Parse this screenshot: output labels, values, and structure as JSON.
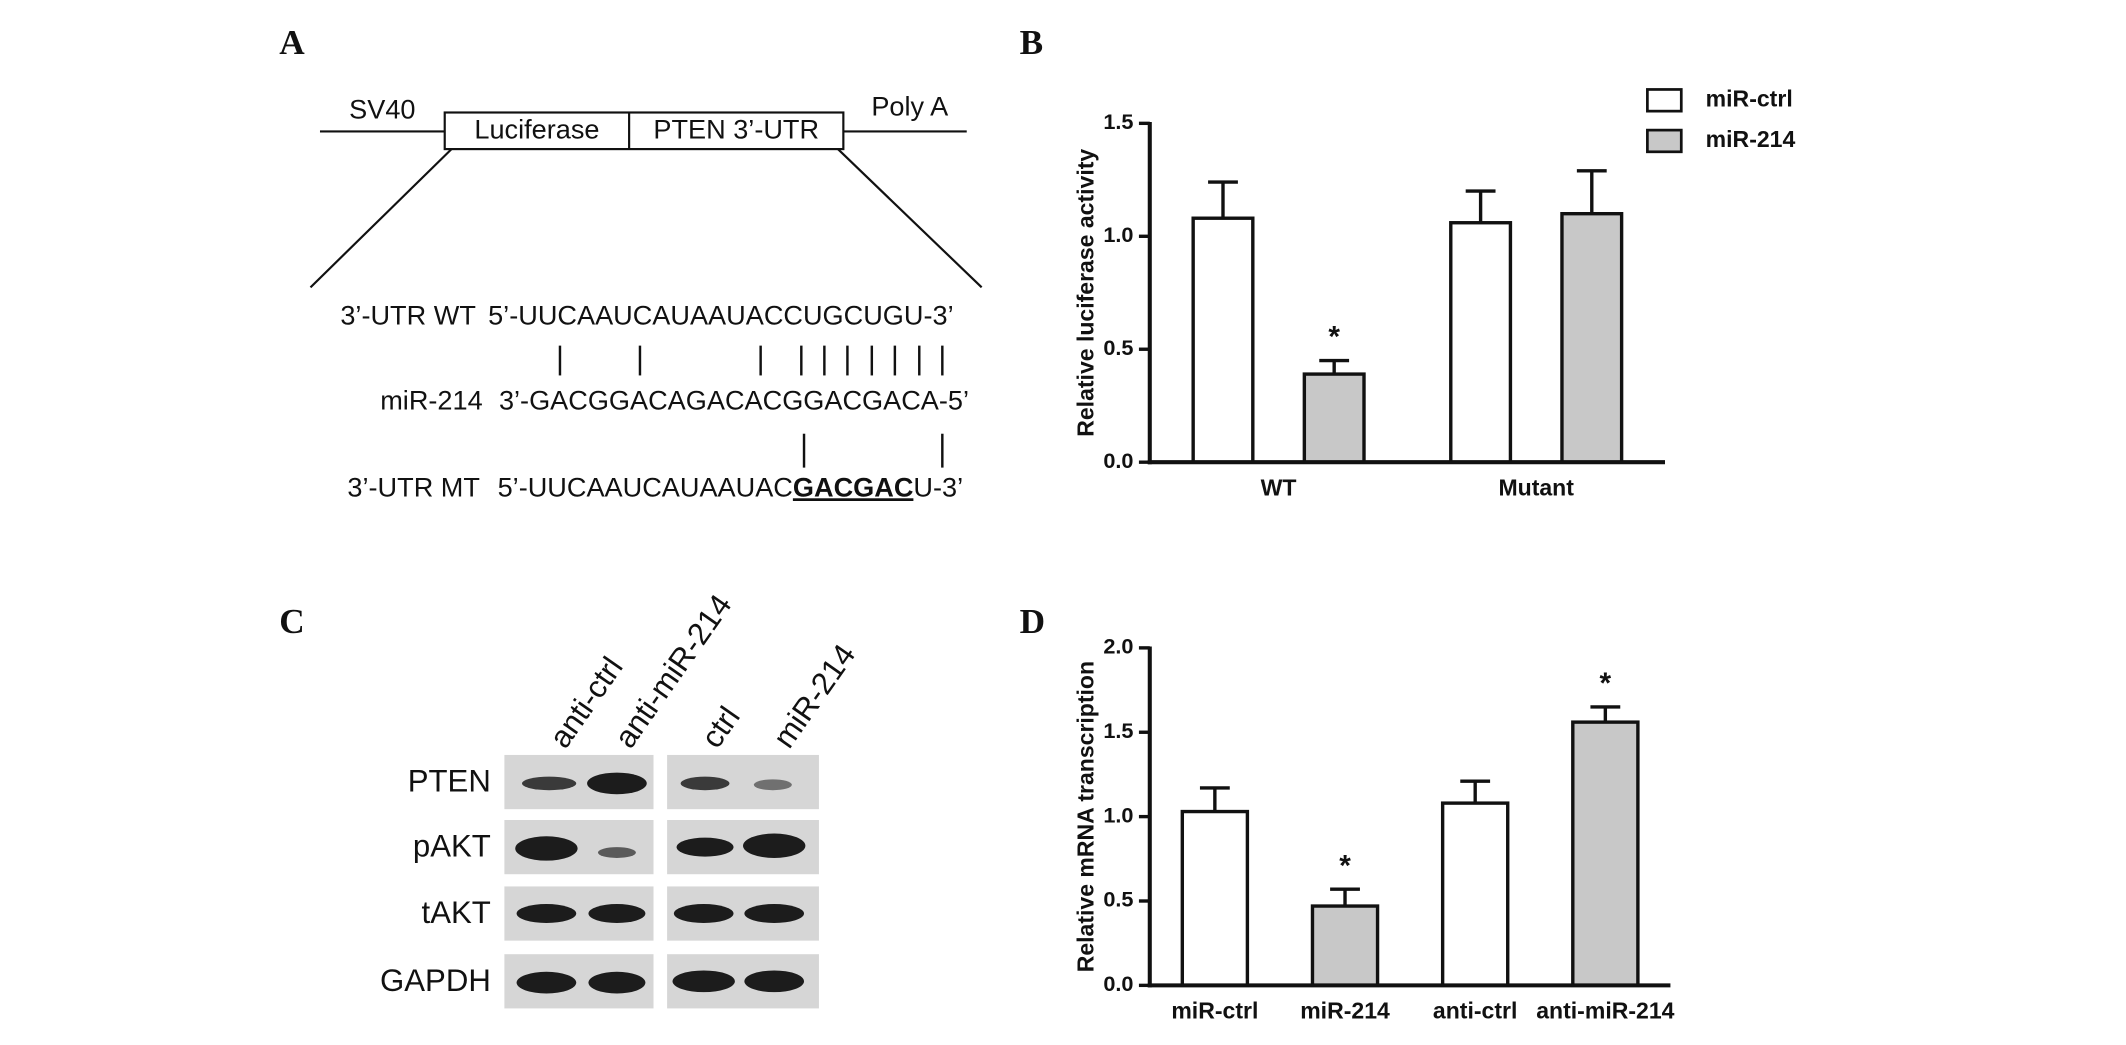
{
  "panel_labels": [
    "A",
    "B",
    "C",
    "D"
  ],
  "panel_a": {
    "construct": [
      "SV40",
      "Luciferase",
      "PTEN 3’-UTR",
      "Poly A"
    ],
    "rows": [
      {
        "label": "3’-UTR WT",
        "sequence": "5’-UUCAAUCAUAAUACCUGCUGU-3’"
      },
      {
        "label": "miR-214",
        "sequence": "3’-GACGGACAGACACGGACGACA-5’"
      },
      {
        "label": "3’-UTR MT",
        "sequence_parts": [
          "5’-UUCAAUCAUAAUAC",
          "GACGAC",
          "U-3’"
        ]
      }
    ]
  },
  "panel_c": {
    "lanes": [
      "anti-ctrl",
      "anti-miR-214",
      "ctrl",
      "miR-214"
    ],
    "proteins": [
      "PTEN",
      "pAKT",
      "tAKT",
      "GAPDH"
    ]
  },
  "chart_data": [
    {
      "type": "bar",
      "ylabel": "Relative luciferase activity",
      "categories": [
        "WT",
        "Mutant"
      ],
      "series": [
        {
          "name": "miR-ctrl",
          "color": "#ffffff",
          "values": [
            1.08,
            1.06
          ],
          "errors": [
            0.16,
            0.14
          ]
        },
        {
          "name": "miR-214",
          "color": "#c8c8c8",
          "values": [
            0.39,
            1.1
          ],
          "errors": [
            0.06,
            0.19
          ],
          "significance": [
            "*",
            null
          ]
        }
      ],
      "ylim": [
        0,
        1.5
      ],
      "yticks": [
        {
          "value": 0,
          "label": "0.0"
        },
        {
          "value": 0.5,
          "label": "0.5"
        },
        {
          "value": 1,
          "label": "1.0"
        },
        {
          "value": 1.5,
          "label": "1.5"
        }
      ],
      "legend": "upper right"
    },
    {
      "type": "bar",
      "ylabel": "Relative mRNA transcription",
      "categories": [
        "miR-ctrl",
        "miR-214",
        "anti-ctrl",
        "anti-miR-214"
      ],
      "values": [
        1.03,
        0.47,
        1.08,
        1.56
      ],
      "errors": [
        0.14,
        0.1,
        0.13,
        0.09
      ],
      "colors": [
        "#ffffff",
        "#c8c8c8",
        "#ffffff",
        "#c8c8c8"
      ],
      "significance": [
        null,
        "*",
        null,
        "*"
      ],
      "ylim": [
        0,
        2
      ],
      "yticks": [
        {
          "value": 0,
          "label": "0.0"
        },
        {
          "value": 0.5,
          "label": "0.5"
        },
        {
          "value": 1,
          "label": "1.0"
        },
        {
          "value": 1.5,
          "label": "1.5"
        },
        {
          "value": 2,
          "label": "2.0"
        }
      ]
    }
  ]
}
